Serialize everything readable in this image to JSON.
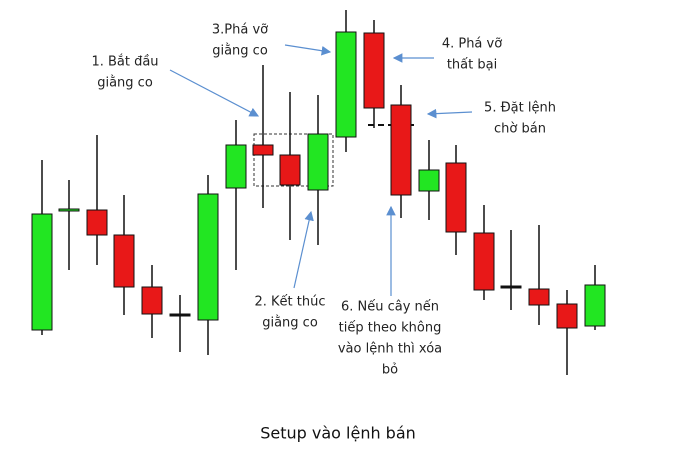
{
  "annotations": [
    {
      "lines": [
        "1. Bắt đầu",
        "giằng co"
      ]
    },
    {
      "lines": [
        "3.Phá vỡ",
        "giằng co"
      ]
    },
    {
      "lines": [
        "4. Phá vỡ",
        "thất bại"
      ]
    },
    {
      "lines": [
        "5. Đặt lệnh",
        "chờ bán"
      ]
    },
    {
      "lines": [
        "2. Kết thúc",
        "giằng co"
      ]
    },
    {
      "lines": [
        "6. Nếu cây nến",
        "tiếp theo không",
        "vào lệnh thì xóa",
        "bỏ"
      ]
    }
  ],
  "caption": "Setup vào lệnh bán"
}
